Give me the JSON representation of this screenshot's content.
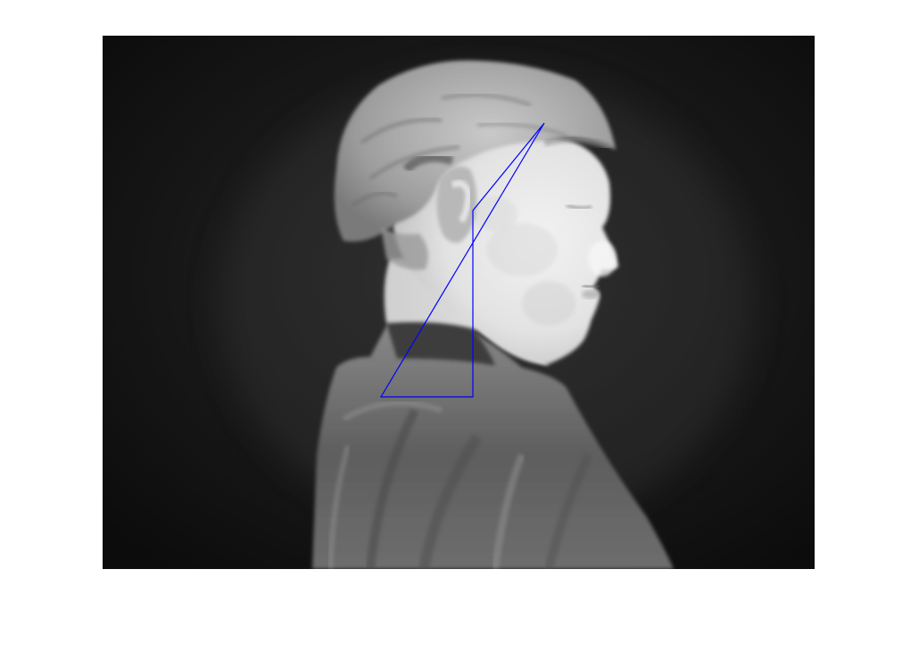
{
  "figure": {
    "background": "#ffffff",
    "image_kind": "grayscale thermal image, profile of a person facing right",
    "overlay": {
      "shape": "quadrilateral outline",
      "color": "#0000ff",
      "vertex_count": 4
    }
  }
}
